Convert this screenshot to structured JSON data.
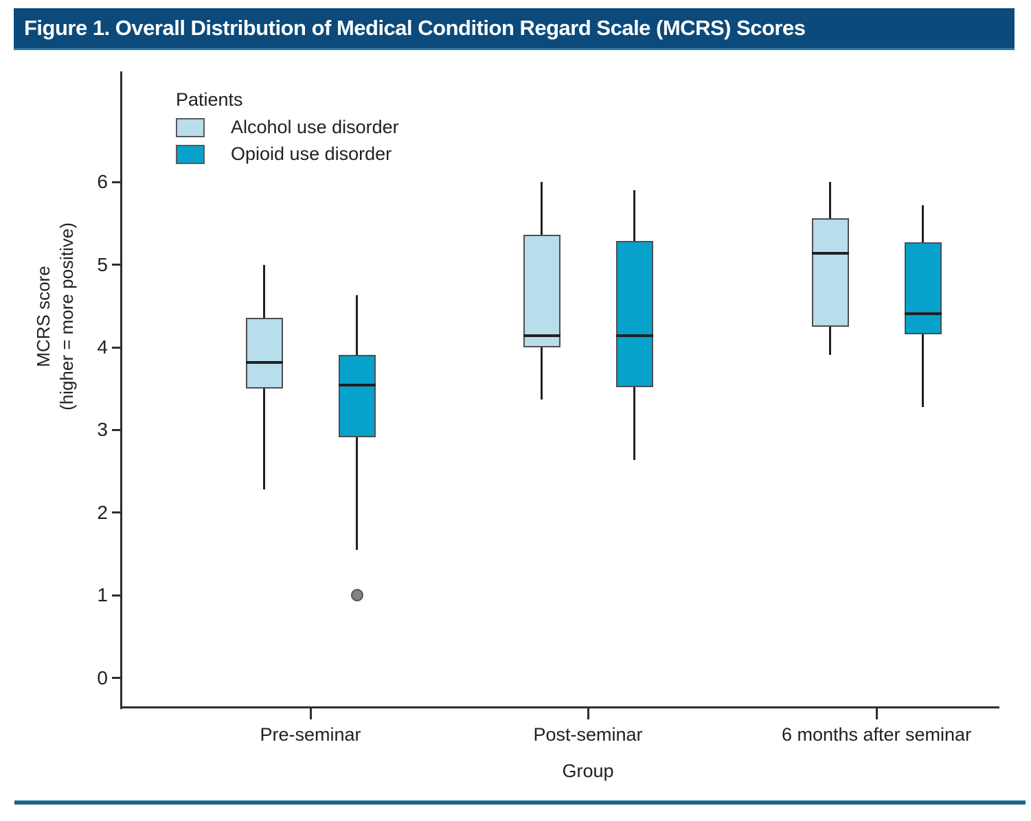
{
  "figure": {
    "title": "Figure 1. Overall Distribution of Medical Condition Regard Scale (MCRS) Scores"
  },
  "legend": {
    "title": "Patients",
    "items": [
      {
        "label": "Alcohol use disorder",
        "color": "#b8ddeb"
      },
      {
        "label": "Opioid use disorder",
        "color": "#06a2cc"
      }
    ]
  },
  "colors": {
    "title_bar_bg": "#0b4a7b",
    "title_bar_underline": "#2d7ea3",
    "title_text": "#ffffff",
    "alcohol_fill": "#b8ddeb",
    "opioid_fill": "#06a2cc",
    "box_border": "#4d4e50",
    "whisker": "#231f20",
    "median": "#231f20",
    "outlier_fill": "#818285",
    "outlier_border": "#55565a",
    "axis": "#2e2e30",
    "divider": "#1e6290"
  },
  "chart_data": {
    "type": "boxplot",
    "title": "Figure 1. Overall Distribution of Medical Condition Regard Scale (MCRS) Scores",
    "xlabel": "Group",
    "ylabel_lines": [
      "MCRS score",
      "(higher = more positive)"
    ],
    "ylim": [
      0,
      6
    ],
    "yticks": [
      0,
      1,
      2,
      3,
      4,
      5,
      6
    ],
    "categories": [
      "Pre-seminar",
      "Post-seminar",
      "6 months after seminar"
    ],
    "grid": false,
    "legend_position": "top-left",
    "series": [
      {
        "name": "Alcohol use disorder",
        "key": "alcohol",
        "fill": "#b8ddeb",
        "boxes": [
          {
            "category": "Pre-seminar",
            "whisker_low": 2.28,
            "q1": 3.5,
            "median": 3.82,
            "q3": 4.36,
            "whisker_high": 5.0,
            "outliers": []
          },
          {
            "category": "Post-seminar",
            "whisker_low": 3.37,
            "q1": 4.0,
            "median": 4.14,
            "q3": 5.36,
            "whisker_high": 6.0,
            "outliers": []
          },
          {
            "category": "6 months after seminar",
            "whisker_low": 3.91,
            "q1": 4.25,
            "median": 5.14,
            "q3": 5.56,
            "whisker_high": 6.0,
            "outliers": []
          }
        ]
      },
      {
        "name": "Opioid use disorder",
        "key": "opioid",
        "fill": "#06a2cc",
        "boxes": [
          {
            "category": "Pre-seminar",
            "whisker_low": 1.55,
            "q1": 2.91,
            "median": 3.54,
            "q3": 3.91,
            "whisker_high": 4.63,
            "outliers": [
              1.0
            ]
          },
          {
            "category": "Post-seminar",
            "whisker_low": 2.64,
            "q1": 3.52,
            "median": 4.14,
            "q3": 5.29,
            "whisker_high": 5.9,
            "outliers": []
          },
          {
            "category": "6 months after seminar",
            "whisker_low": 3.28,
            "q1": 4.16,
            "median": 4.41,
            "q3": 5.27,
            "whisker_high": 5.72,
            "outliers": []
          }
        ]
      }
    ]
  }
}
